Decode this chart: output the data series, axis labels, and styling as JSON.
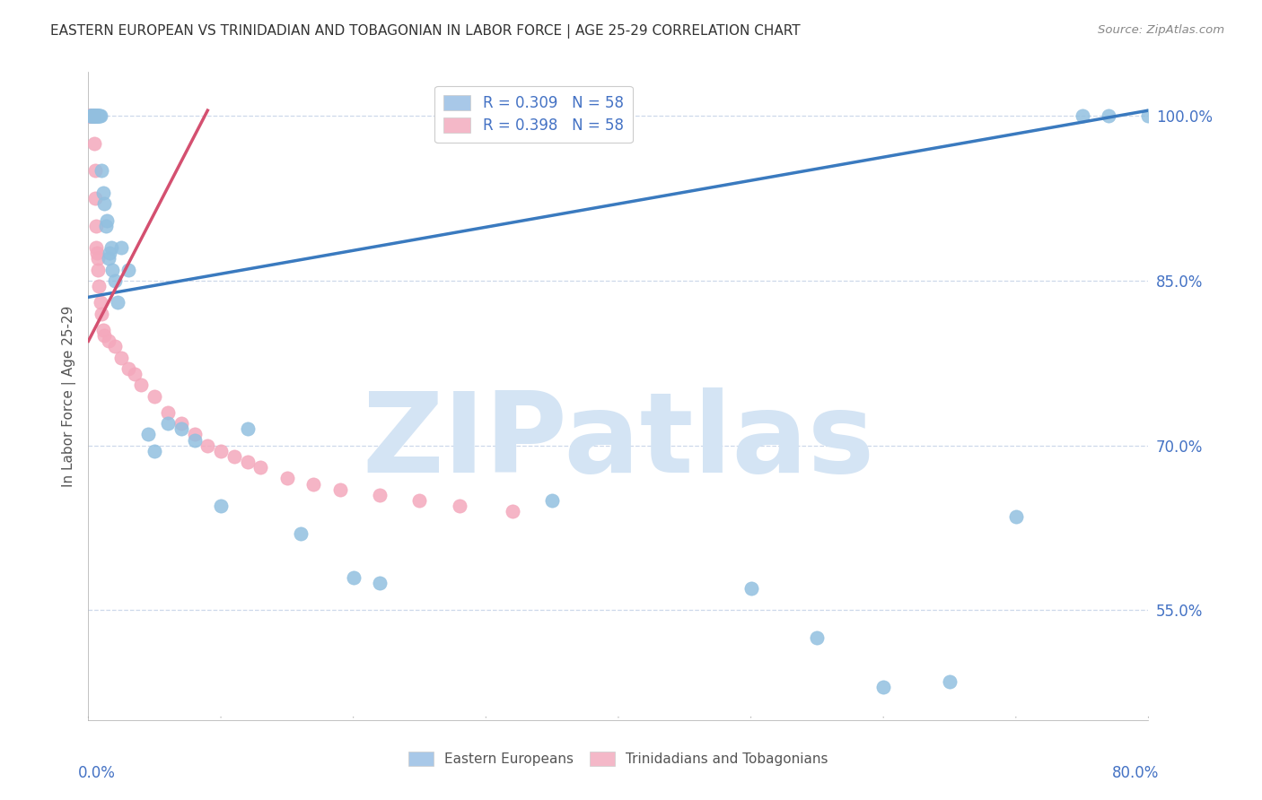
{
  "title": "EASTERN EUROPEAN VS TRINIDADIAN AND TOBAGONIAN IN LABOR FORCE | AGE 25-29 CORRELATION CHART",
  "source": "Source: ZipAtlas.com",
  "ylabel": "In Labor Force | Age 25-29",
  "ytick_vals": [
    55.0,
    70.0,
    85.0,
    100.0
  ],
  "ytick_labels": [
    "55.0%",
    "70.0%",
    "85.0%",
    "100.0%"
  ],
  "blue_color": "#92c0e0",
  "pink_color": "#f4a8bc",
  "blue_line_color": "#3a7abf",
  "pink_line_color": "#d45070",
  "watermark": "ZIPatlas",
  "watermark_color": "#d4e4f4",
  "xmin": 0.0,
  "xmax": 80.0,
  "ymin": 45.0,
  "ymax": 104.0,
  "background_color": "#ffffff",
  "grid_color": "#c8d4e8",
  "title_color": "#333333",
  "axis_label_color": "#4472c4",
  "legend_blue_color": "#a8c8e8",
  "legend_pink_color": "#f4b8c8",
  "blue_scatter_x": [
    0.1,
    0.15,
    0.2,
    0.25,
    0.3,
    0.3,
    0.35,
    0.4,
    0.4,
    0.45,
    0.5,
    0.5,
    0.55,
    0.6,
    0.6,
    0.65,
    0.7,
    0.7,
    0.75,
    0.8,
    0.85,
    0.9,
    1.0,
    1.1,
    1.2,
    1.3,
    1.4,
    1.5,
    1.6,
    1.7,
    1.8,
    2.0,
    2.2,
    2.5,
    3.0,
    4.5,
    5.0,
    6.0,
    7.0,
    8.0,
    10.0,
    12.0,
    16.0,
    20.0,
    22.0,
    35.0,
    50.0,
    55.0,
    60.0,
    65.0,
    70.0,
    75.0,
    77.0,
    80.0
  ],
  "blue_scatter_y": [
    100.0,
    100.0,
    100.0,
    100.0,
    100.0,
    100.0,
    100.0,
    100.0,
    100.0,
    100.0,
    100.0,
    100.0,
    100.0,
    100.0,
    100.0,
    100.0,
    100.0,
    100.0,
    100.0,
    100.0,
    100.0,
    100.0,
    95.0,
    93.0,
    92.0,
    90.0,
    90.5,
    87.0,
    87.5,
    88.0,
    86.0,
    85.0,
    83.0,
    88.0,
    86.0,
    71.0,
    69.5,
    72.0,
    71.5,
    70.5,
    64.5,
    71.5,
    62.0,
    58.0,
    57.5,
    65.0,
    57.0,
    52.5,
    48.0,
    48.5,
    63.5,
    100.0,
    100.0,
    100.0
  ],
  "pink_scatter_x": [
    0.05,
    0.08,
    0.1,
    0.1,
    0.12,
    0.15,
    0.15,
    0.18,
    0.2,
    0.2,
    0.22,
    0.25,
    0.25,
    0.28,
    0.3,
    0.3,
    0.32,
    0.35,
    0.35,
    0.38,
    0.4,
    0.4,
    0.42,
    0.45,
    0.5,
    0.5,
    0.55,
    0.6,
    0.65,
    0.7,
    0.75,
    0.8,
    0.9,
    1.0,
    1.1,
    1.2,
    1.5,
    2.0,
    2.5,
    3.0,
    3.5,
    4.0,
    5.0,
    6.0,
    7.0,
    8.0,
    9.0,
    10.0,
    11.0,
    12.0,
    13.0,
    15.0,
    17.0,
    19.0,
    22.0,
    25.0,
    28.0,
    32.0
  ],
  "pink_scatter_y": [
    100.0,
    100.0,
    100.0,
    100.0,
    100.0,
    100.0,
    100.0,
    100.0,
    100.0,
    100.0,
    100.0,
    100.0,
    100.0,
    100.0,
    100.0,
    100.0,
    100.0,
    100.0,
    100.0,
    100.0,
    100.0,
    100.0,
    100.0,
    97.5,
    95.0,
    92.5,
    90.0,
    88.0,
    87.5,
    87.0,
    86.0,
    84.5,
    83.0,
    82.0,
    80.5,
    80.0,
    79.5,
    79.0,
    78.0,
    77.0,
    76.5,
    75.5,
    74.5,
    73.0,
    72.0,
    71.0,
    70.0,
    69.5,
    69.0,
    68.5,
    68.0,
    67.0,
    66.5,
    66.0,
    65.5,
    65.0,
    64.5,
    64.0
  ],
  "blue_line_x0": 0.0,
  "blue_line_y0": 83.5,
  "blue_line_x1": 80.0,
  "blue_line_y1": 100.5,
  "pink_line_x0": 0.0,
  "pink_line_y0": 79.5,
  "pink_line_x1": 9.0,
  "pink_line_y1": 100.5
}
